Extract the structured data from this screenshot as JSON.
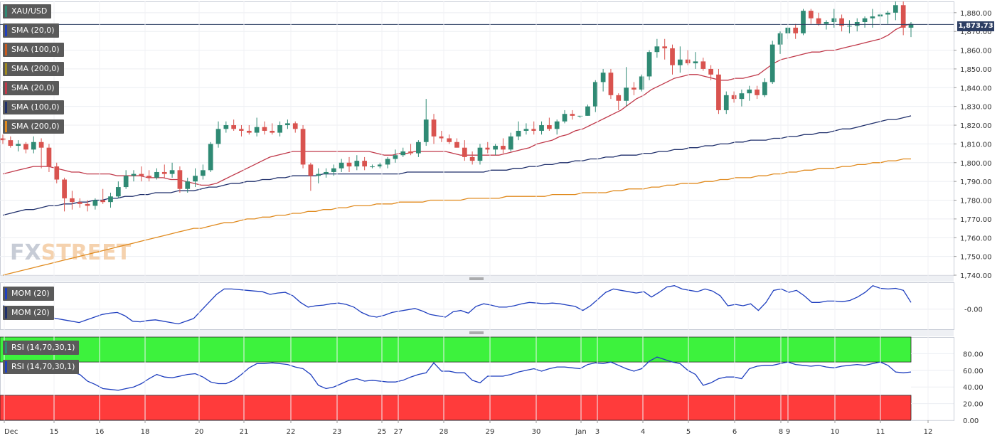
{
  "chart_data": {
    "type": "candlestick",
    "symbol": "XAU/USD",
    "last_price": "1,873.73",
    "x_labels": [
      "Dec",
      "15",
      "16",
      "18",
      "20",
      "21",
      "22",
      "23",
      "25",
      "27",
      "28",
      "29",
      "30",
      "Jan",
      "3",
      "4",
      "5",
      "6",
      "8",
      "9",
      "10",
      "11",
      "12"
    ],
    "main": {
      "ylim": [
        1740,
        1886
      ],
      "yticks": [
        "1,740.00",
        "1,750.00",
        "1,760.00",
        "1,770.00",
        "1,780.00",
        "1,790.00",
        "1,800.00",
        "1,810.00",
        "1,820.00",
        "1,830.00",
        "1,840.00",
        "1,850.00",
        "1,860.00",
        "1,870.00",
        "1,880.00"
      ],
      "up_color": "#2f8a74",
      "down_color": "#d9534f",
      "candles": [
        [
          1813,
          1815,
          1810,
          1812
        ],
        [
          1812,
          1814,
          1808,
          1809
        ],
        [
          1809,
          1812,
          1806,
          1810
        ],
        [
          1810,
          1811,
          1805,
          1807
        ],
        [
          1807,
          1814,
          1805,
          1811
        ],
        [
          1811,
          1813,
          1797,
          1808
        ],
        [
          1808,
          1810,
          1795,
          1798
        ],
        [
          1798,
          1800,
          1789,
          1791
        ],
        [
          1791,
          1792,
          1774,
          1781
        ],
        [
          1781,
          1785,
          1775,
          1779
        ],
        [
          1779,
          1781,
          1776,
          1778
        ],
        [
          1778,
          1780,
          1774,
          1777
        ],
        [
          1777,
          1781,
          1775,
          1780
        ],
        [
          1780,
          1786,
          1778,
          1779
        ],
        [
          1779,
          1784,
          1776,
          1782
        ],
        [
          1782,
          1790,
          1781,
          1787
        ],
        [
          1787,
          1796,
          1786,
          1793
        ],
        [
          1793,
          1796,
          1790,
          1794
        ],
        [
          1794,
          1798,
          1790,
          1793
        ],
        [
          1793,
          1796,
          1790,
          1792
        ],
        [
          1792,
          1797,
          1791,
          1795
        ],
        [
          1795,
          1799,
          1792,
          1794
        ],
        [
          1794,
          1800,
          1792,
          1796
        ],
        [
          1796,
          1798,
          1784,
          1786
        ],
        [
          1786,
          1792,
          1784,
          1790
        ],
        [
          1790,
          1797,
          1787,
          1793
        ],
        [
          1793,
          1799,
          1791,
          1796
        ],
        [
          1796,
          1811,
          1795,
          1810
        ],
        [
          1810,
          1822,
          1808,
          1818
        ],
        [
          1818,
          1822,
          1816,
          1820
        ],
        [
          1820,
          1823,
          1817,
          1818
        ],
        [
          1818,
          1820,
          1814,
          1817
        ],
        [
          1817,
          1820,
          1815,
          1816
        ],
        [
          1816,
          1824,
          1814,
          1819
        ],
        [
          1819,
          1822,
          1815,
          1817
        ],
        [
          1817,
          1821,
          1815,
          1816
        ],
        [
          1816,
          1822,
          1814,
          1820
        ],
        [
          1820,
          1823,
          1818,
          1821
        ],
        [
          1821,
          1822,
          1816,
          1818
        ],
        [
          1818,
          1820,
          1797,
          1799
        ],
        [
          1799,
          1800,
          1785,
          1793
        ],
        [
          1793,
          1797,
          1789,
          1794
        ],
        [
          1794,
          1797,
          1792,
          1795
        ],
        [
          1795,
          1799,
          1793,
          1797
        ],
        [
          1797,
          1802,
          1795,
          1800
        ],
        [
          1800,
          1803,
          1795,
          1798
        ],
        [
          1798,
          1804,
          1796,
          1801
        ],
        [
          1801,
          1803,
          1796,
          1798
        ],
        [
          1798,
          1799,
          1797,
          1798
        ],
        [
          1798,
          1800,
          1797,
          1799
        ],
        [
          1799,
          1803,
          1797,
          1802
        ],
        [
          1802,
          1807,
          1800,
          1804
        ],
        [
          1804,
          1808,
          1803,
          1806
        ],
        [
          1806,
          1810,
          1804,
          1805
        ],
        [
          1805,
          1812,
          1803,
          1811
        ],
        [
          1811,
          1834,
          1809,
          1823
        ],
        [
          1823,
          1826,
          1810,
          1814
        ],
        [
          1814,
          1817,
          1811,
          1813
        ],
        [
          1813,
          1815,
          1810,
          1811
        ],
        [
          1811,
          1813,
          1808,
          1808
        ],
        [
          1808,
          1812,
          1801,
          1803
        ],
        [
          1803,
          1806,
          1799,
          1801
        ],
        [
          1801,
          1810,
          1799,
          1808
        ],
        [
          1808,
          1811,
          1805,
          1807
        ],
        [
          1807,
          1810,
          1804,
          1809
        ],
        [
          1809,
          1813,
          1805,
          1807
        ],
        [
          1807,
          1816,
          1806,
          1814
        ],
        [
          1814,
          1822,
          1812,
          1817
        ],
        [
          1817,
          1821,
          1815,
          1818
        ],
        [
          1818,
          1822,
          1815,
          1817
        ],
        [
          1817,
          1822,
          1815,
          1820
        ],
        [
          1820,
          1824,
          1817,
          1818
        ],
        [
          1818,
          1823,
          1815,
          1822
        ],
        [
          1822,
          1828,
          1821,
          1826
        ],
        [
          1826,
          1828,
          1823,
          1825
        ],
        [
          1825,
          1825,
          1824,
          1825
        ],
        [
          1825,
          1831,
          1825,
          1830
        ],
        [
          1830,
          1844,
          1827,
          1843
        ],
        [
          1843,
          1850,
          1838,
          1848
        ],
        [
          1848,
          1850,
          1834,
          1836
        ],
        [
          1836,
          1837,
          1828,
          1833
        ],
        [
          1833,
          1851,
          1830,
          1840
        ],
        [
          1840,
          1843,
          1836,
          1839
        ],
        [
          1839,
          1847,
          1838,
          1846
        ],
        [
          1846,
          1860,
          1844,
          1859
        ],
        [
          1859,
          1866,
          1856,
          1862
        ],
        [
          1862,
          1866,
          1855,
          1861
        ],
        [
          1861,
          1863,
          1847,
          1852
        ],
        [
          1852,
          1862,
          1848,
          1855
        ],
        [
          1855,
          1860,
          1852,
          1853
        ],
        [
          1853,
          1859,
          1850,
          1854
        ],
        [
          1854,
          1856,
          1849,
          1850
        ],
        [
          1850,
          1852,
          1844,
          1847
        ],
        [
          1847,
          1850,
          1826,
          1828
        ],
        [
          1828,
          1838,
          1826,
          1836
        ],
        [
          1836,
          1838,
          1832,
          1834
        ],
        [
          1834,
          1839,
          1830,
          1837
        ],
        [
          1837,
          1841,
          1833,
          1839
        ],
        [
          1839,
          1841,
          1834,
          1836
        ],
        [
          1836,
          1845,
          1835,
          1843
        ],
        [
          1843,
          1865,
          1842,
          1863
        ],
        [
          1863,
          1870,
          1858,
          1869
        ],
        [
          1869,
          1873,
          1866,
          1872
        ],
        [
          1872,
          1874,
          1866,
          1869
        ],
        [
          1869,
          1882,
          1868,
          1881
        ],
        [
          1881,
          1882,
          1874,
          1877
        ],
        [
          1877,
          1880,
          1873,
          1874
        ],
        [
          1874,
          1876,
          1871,
          1875
        ],
        [
          1875,
          1882,
          1872,
          1877
        ],
        [
          1877,
          1879,
          1870,
          1873
        ],
        [
          1873,
          1876,
          1869,
          1873
        ],
        [
          1873,
          1877,
          1870,
          1875
        ],
        [
          1875,
          1878,
          1872,
          1877
        ],
        [
          1877,
          1882,
          1872,
          1878
        ],
        [
          1878,
          1880,
          1874,
          1879
        ],
        [
          1879,
          1881,
          1874,
          1880
        ],
        [
          1880,
          1886,
          1876,
          1884
        ],
        [
          1884,
          1886,
          1868,
          1872
        ],
        [
          1872,
          1875,
          1867,
          1874
        ]
      ],
      "sma20_color": "#c0394a",
      "sma20": [
        1794,
        1795,
        1796,
        1797,
        1798,
        1798,
        1798,
        1797,
        1796,
        1795,
        1795,
        1794,
        1794,
        1794,
        1794,
        1793,
        1793,
        1793,
        1793,
        1792,
        1792,
        1792,
        1791,
        1791,
        1790,
        1789,
        1788,
        1788,
        1789,
        1791,
        1793,
        1795,
        1797,
        1799,
        1801,
        1803,
        1804,
        1805,
        1806,
        1806,
        1806,
        1806,
        1806,
        1806,
        1806,
        1806,
        1806,
        1806,
        1806,
        1805,
        1804,
        1804,
        1805,
        1805,
        1806,
        1806,
        1806,
        1806,
        1806,
        1805,
        1804,
        1804,
        1804,
        1804,
        1804,
        1804,
        1805,
        1806,
        1807,
        1808,
        1810,
        1811,
        1812,
        1814,
        1815,
        1817,
        1818,
        1820,
        1822,
        1824,
        1826,
        1828,
        1831,
        1834,
        1836,
        1839,
        1841,
        1843,
        1845,
        1846,
        1847,
        1847,
        1846,
        1845,
        1844,
        1844,
        1845,
        1845,
        1846,
        1847,
        1850,
        1853,
        1855,
        1856,
        1857,
        1858,
        1859,
        1859,
        1860,
        1860,
        1861,
        1862,
        1863,
        1864,
        1865,
        1866,
        1868,
        1871,
        1873,
        1874
      ],
      "sma100_color": "#1f2f6b",
      "sma100": [
        1772,
        1773,
        1774,
        1775,
        1775,
        1776,
        1777,
        1777,
        1778,
        1778,
        1779,
        1779,
        1780,
        1780,
        1781,
        1781,
        1782,
        1782,
        1783,
        1783,
        1784,
        1784,
        1784,
        1785,
        1785,
        1785,
        1786,
        1787,
        1787,
        1788,
        1789,
        1789,
        1790,
        1790,
        1791,
        1791,
        1792,
        1792,
        1793,
        1793,
        1793,
        1793,
        1794,
        1794,
        1794,
        1794,
        1794,
        1794,
        1794,
        1794,
        1794,
        1794,
        1794,
        1795,
        1795,
        1795,
        1795,
        1795,
        1795,
        1795,
        1795,
        1795,
        1795,
        1795,
        1796,
        1796,
        1796,
        1797,
        1797,
        1798,
        1798,
        1799,
        1799,
        1800,
        1800,
        1801,
        1801,
        1802,
        1802,
        1803,
        1803,
        1804,
        1804,
        1804,
        1805,
        1805,
        1806,
        1806,
        1807,
        1807,
        1808,
        1808,
        1809,
        1809,
        1810,
        1810,
        1811,
        1811,
        1812,
        1812,
        1812,
        1813,
        1813,
        1814,
        1814,
        1815,
        1815,
        1816,
        1816,
        1817,
        1818,
        1818,
        1819,
        1820,
        1821,
        1822,
        1823,
        1823,
        1824,
        1825
      ],
      "sma200_color": "#e08a1e",
      "sma200": [
        1740,
        1741,
        1742,
        1743,
        1744,
        1745,
        1746,
        1747,
        1748,
        1749,
        1750,
        1751,
        1752,
        1753,
        1754,
        1755,
        1756,
        1757,
        1758,
        1759,
        1760,
        1761,
        1762,
        1763,
        1764,
        1765,
        1765,
        1766,
        1767,
        1768,
        1768,
        1769,
        1770,
        1770,
        1771,
        1771,
        1772,
        1772,
        1773,
        1773,
        1774,
        1774,
        1775,
        1775,
        1776,
        1776,
        1777,
        1777,
        1777,
        1778,
        1778,
        1778,
        1779,
        1779,
        1779,
        1779,
        1780,
        1780,
        1780,
        1780,
        1780,
        1781,
        1781,
        1781,
        1781,
        1781,
        1782,
        1782,
        1782,
        1782,
        1782,
        1782,
        1783,
        1783,
        1783,
        1783,
        1784,
        1784,
        1784,
        1784,
        1785,
        1785,
        1786,
        1786,
        1786,
        1787,
        1787,
        1788,
        1788,
        1789,
        1789,
        1789,
        1790,
        1790,
        1791,
        1791,
        1792,
        1792,
        1792,
        1793,
        1793,
        1794,
        1794,
        1795,
        1795,
        1796,
        1796,
        1797,
        1797,
        1797,
        1798,
        1798,
        1799,
        1799,
        1800,
        1800,
        1801,
        1801,
        1802,
        1802
      ]
    },
    "mom": {
      "label": "MOM (20)",
      "ytick": "-0.00",
      "ylim": [
        -30,
        40
      ],
      "color": "#1f3fbf",
      "values": [
        5,
        3,
        0,
        -4,
        -8,
        -10,
        -12,
        -14,
        -16,
        -18,
        -20,
        -16,
        -12,
        -8,
        -6,
        -5,
        -10,
        -18,
        -19,
        -17,
        -16,
        -18,
        -20,
        -22,
        -18,
        -14,
        -2,
        10,
        22,
        30,
        30,
        29,
        28,
        27,
        26,
        22,
        24,
        25,
        20,
        10,
        3,
        5,
        6,
        8,
        9,
        7,
        3,
        -5,
        -10,
        -12,
        -9,
        -5,
        -3,
        -1,
        1,
        -3,
        -8,
        -10,
        -12,
        -4,
        -2,
        -6,
        4,
        8,
        6,
        3,
        3,
        5,
        8,
        10,
        9,
        8,
        9,
        8,
        6,
        4,
        -2,
        5,
        15,
        25,
        30,
        28,
        26,
        24,
        26,
        18,
        25,
        33,
        35,
        30,
        28,
        26,
        30,
        27,
        20,
        5,
        7,
        5,
        8,
        -2,
        10,
        28,
        30,
        25,
        28,
        20,
        10,
        10,
        12,
        12,
        11,
        13,
        18,
        25,
        35,
        31,
        30,
        31,
        28,
        10
      ]
    },
    "rsi": {
      "label": "RSI (14,70,30,1)",
      "yticks": [
        "0.00",
        "20.00",
        "40.00",
        "60.00",
        "80.00"
      ],
      "ylim": [
        0,
        100
      ],
      "upper_band": [
        70,
        100
      ],
      "lower_band": [
        0,
        30
      ],
      "upper_band_color": "#3df23d",
      "lower_band_color": "#ff3b3b",
      "line_color": "#1f3fbf",
      "values": [
        60,
        58,
        57,
        58,
        59,
        60,
        60,
        61,
        60,
        58,
        55,
        47,
        43,
        38,
        37,
        36,
        38,
        40,
        44,
        50,
        55,
        52,
        51,
        53,
        55,
        56,
        52,
        46,
        44,
        44,
        48,
        55,
        63,
        68,
        68,
        69,
        68,
        67,
        64,
        62,
        55,
        42,
        38,
        40,
        44,
        48,
        50,
        47,
        48,
        47,
        46,
        46,
        48,
        52,
        55,
        57,
        69,
        59,
        59,
        57,
        57,
        48,
        45,
        53,
        53,
        53,
        55,
        58,
        60,
        62,
        59,
        62,
        64,
        64,
        63,
        62,
        67,
        69,
        68,
        70,
        66,
        62,
        59,
        62,
        71,
        76,
        73,
        70,
        68,
        60,
        55,
        42,
        45,
        50,
        52,
        52,
        50,
        62,
        65,
        66,
        66,
        68,
        70,
        67,
        66,
        65,
        66,
        64,
        63,
        65,
        66,
        67,
        66,
        68,
        70,
        66,
        58,
        57,
        58
      ]
    }
  },
  "legend": {
    "symbol": "XAU/USD",
    "sma_20": "SMA (20,0)",
    "sma_100": "SMA (100,0)",
    "sma_200": "SMA (200,0)"
  },
  "watermark": {
    "fx": "FX",
    "street": "STREET"
  }
}
